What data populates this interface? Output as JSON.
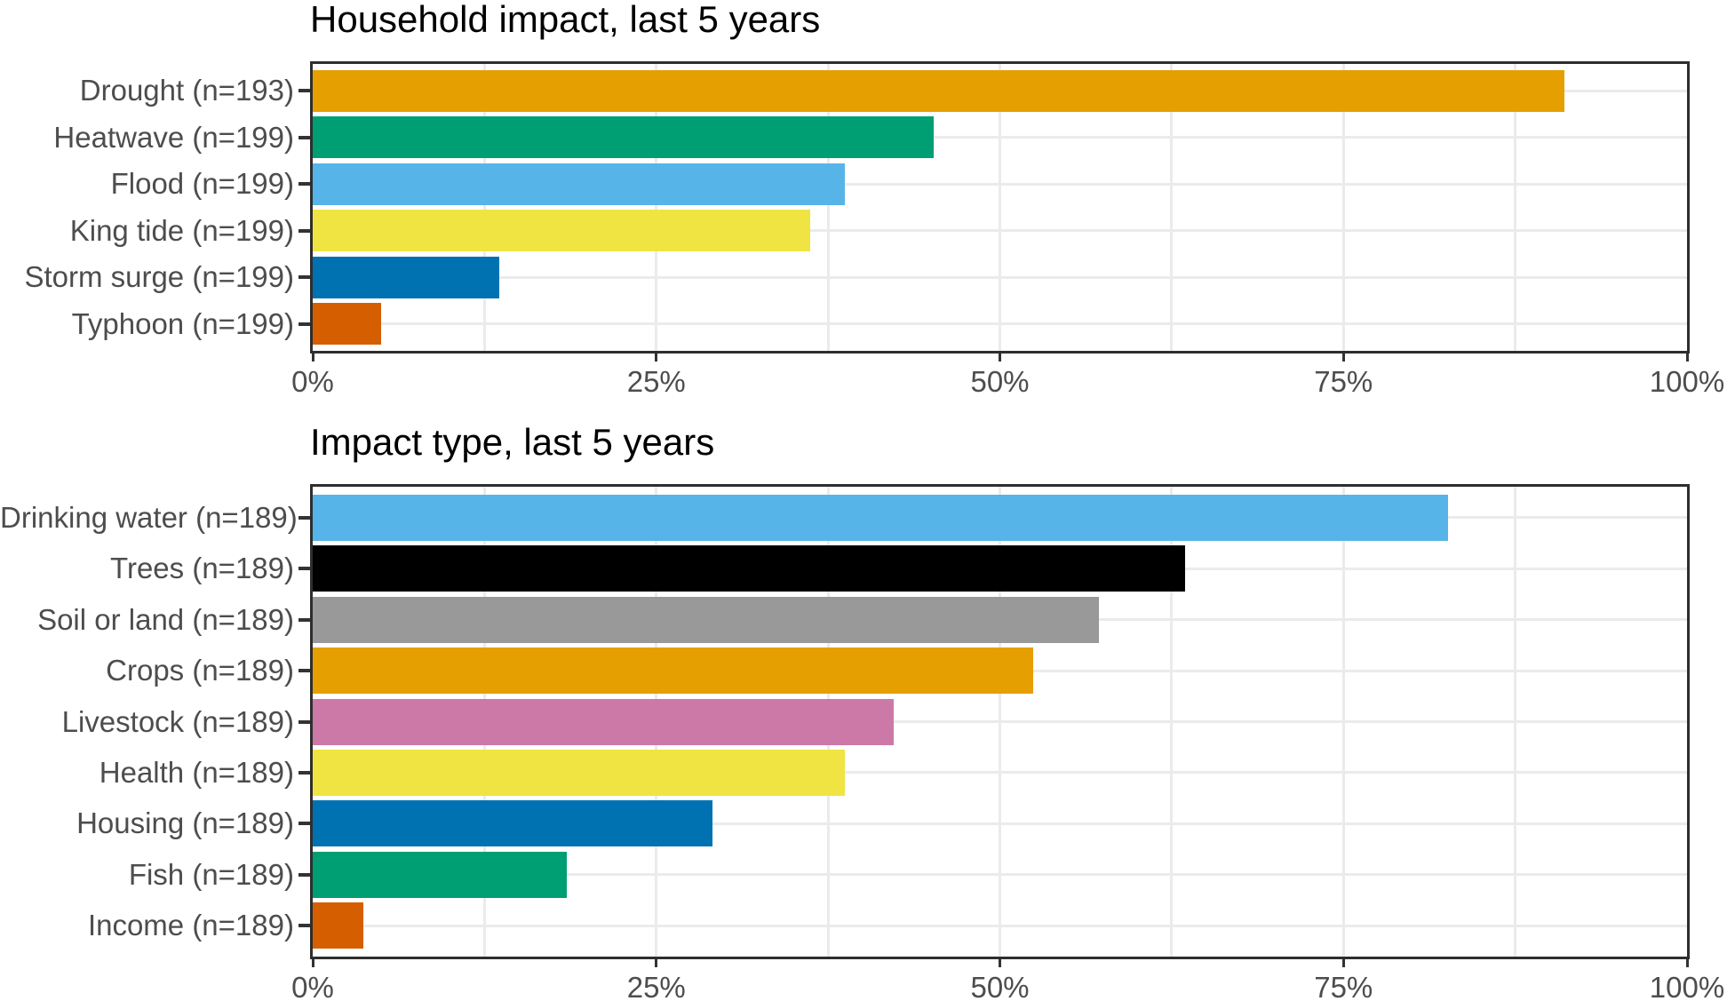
{
  "figure": {
    "background": "#FFFFFF"
  },
  "theme": {
    "title_color": "#000000",
    "axis_text_color": "#4D4D4D",
    "grid_color": "#EBEBEB",
    "panel_border_color": "#2E2E2E",
    "tick_color": "#333333",
    "palette_name": "okabe-ito",
    "palette": [
      "#E69F00",
      "#009E73",
      "#56B4E9",
      "#F0E442",
      "#0072B2",
      "#D55E00",
      "#CC79A7",
      "#000000",
      "#999999"
    ]
  },
  "chart_data": [
    {
      "type": "bar",
      "orientation": "horizontal",
      "title": "Household impact, last 5 years",
      "categories": [
        "Drought (n=193)",
        "Heatwave (n=199)",
        "Flood (n=199)",
        "King tide (n=199)",
        "Storm surge (n=199)",
        "Typhoon (n=199)"
      ],
      "values_pct": [
        91.1,
        45.2,
        38.7,
        36.2,
        13.6,
        5.0
      ],
      "bar_colors": [
        "#E69F00",
        "#009E73",
        "#56B4E9",
        "#F0E442",
        "#0072B2",
        "#D55E00"
      ],
      "xlabel": "",
      "ylabel": "",
      "xlim": [
        0,
        100
      ],
      "x_tick_labels": [
        "0%",
        "25%",
        "50%",
        "75%",
        "100%"
      ],
      "x_tick_values": [
        0,
        25,
        50,
        75,
        100
      ],
      "minor_grid_x_pct": [
        12.5,
        37.5,
        62.5,
        87.5
      ],
      "major_grid_x_pct": [
        25,
        50,
        75,
        100
      ],
      "grid": "on",
      "legend": "none"
    },
    {
      "type": "bar",
      "orientation": "horizontal",
      "title": "Impact type, last 5 years",
      "categories": [
        "Drinking water (n=189)",
        "Trees (n=189)",
        "Soil or land (n=189)",
        "Crops (n=189)",
        "Livestock (n=189)",
        "Health (n=189)",
        "Housing (n=189)",
        "Fish (n=189)",
        "Income (n=189)"
      ],
      "values_pct": [
        82.6,
        63.5,
        57.2,
        52.4,
        42.3,
        38.7,
        29.1,
        18.5,
        3.7
      ],
      "bar_colors": [
        "#56B4E9",
        "#000000",
        "#999999",
        "#E69F00",
        "#CC79A7",
        "#F0E442",
        "#0072B2",
        "#009E73",
        "#D55E00"
      ],
      "xlabel": "",
      "ylabel": "",
      "xlim": [
        0,
        100
      ],
      "x_tick_labels": [
        "0%",
        "25%",
        "50%",
        "75%",
        "100%"
      ],
      "x_tick_values": [
        0,
        25,
        50,
        75,
        100
      ],
      "minor_grid_x_pct": [
        12.5,
        37.5,
        62.5,
        87.5
      ],
      "major_grid_x_pct": [
        25,
        50,
        75,
        100
      ],
      "grid": "on",
      "legend": "none"
    }
  ]
}
